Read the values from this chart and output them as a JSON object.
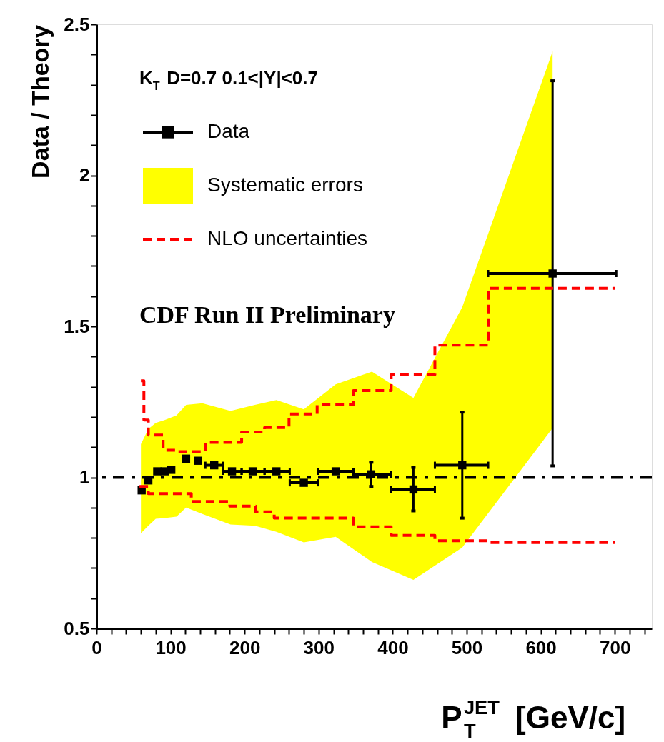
{
  "chart_data": {
    "type": "scatter",
    "ylabel": "Data / Theory",
    "xlabel": "P$^{JET}$$_{T}$ [GeV/c]",
    "annotations": [
      "K$_{T}$ D=0.7 0.1<|Y|<0.7",
      "CDF Run II Preliminary"
    ],
    "xlim": [
      0,
      750
    ],
    "ylim": [
      0.5,
      2.5
    ],
    "xticks": [
      0,
      {
        "value": 20,
        "label": null
      },
      {
        "value": 40,
        "label": null
      },
      {
        "value": 60,
        "label": null
      },
      {
        "value": 80,
        "label": null
      },
      100,
      {
        "value": 120,
        "label": null
      },
      {
        "value": 140,
        "label": null
      },
      {
        "value": 160,
        "label": null
      },
      {
        "value": 180,
        "label": null
      },
      200,
      {
        "value": 220,
        "label": null
      },
      {
        "value": 240,
        "label": null
      },
      {
        "value": 260,
        "label": null
      },
      {
        "value": 280,
        "label": null
      },
      300,
      {
        "value": 320,
        "label": null
      },
      {
        "value": 340,
        "label": null
      },
      {
        "value": 360,
        "label": null
      },
      {
        "value": 380,
        "label": null
      },
      400,
      {
        "value": 420,
        "label": null
      },
      {
        "value": 440,
        "label": null
      },
      {
        "value": 460,
        "label": null
      },
      {
        "value": 480,
        "label": null
      },
      500,
      {
        "value": 520,
        "label": null
      },
      {
        "value": 540,
        "label": null
      },
      {
        "value": 560,
        "label": null
      },
      {
        "value": 580,
        "label": null
      },
      600,
      {
        "value": 620,
        "label": null
      },
      {
        "value": 640,
        "label": null
      },
      {
        "value": 660,
        "label": null
      },
      {
        "value": 680,
        "label": null
      },
      700,
      {
        "value": 720,
        "label": null
      },
      {
        "value": 740,
        "label": null
      }
    ],
    "yticks": [
      0.5,
      {
        "value": 0.6,
        "label": null
      },
      {
        "value": 0.7,
        "label": null
      },
      {
        "value": 0.8,
        "label": null
      },
      {
        "value": 0.9,
        "label": null
      },
      1,
      {
        "value": 1.1,
        "label": null
      },
      {
        "value": 1.2,
        "label": null
      },
      {
        "value": 1.3,
        "label": null
      },
      {
        "value": 1.4,
        "label": null
      },
      1.5,
      {
        "value": 1.6,
        "label": null
      },
      {
        "value": 1.7,
        "label": null
      },
      {
        "value": 1.8,
        "label": null
      },
      {
        "value": 1.9,
        "label": null
      },
      2,
      {
        "value": 2.1,
        "label": null
      },
      {
        "value": 2.2,
        "label": null
      },
      {
        "value": 2.3,
        "label": null
      },
      {
        "value": 2.4,
        "label": null
      },
      2.5
    ],
    "grid": false,
    "legend": "top left",
    "ref_lines": [
      {
        "axis": "y",
        "value": 1,
        "color": "#000000",
        "line_style": "dashdot"
      }
    ],
    "series": [
      {
        "name": "Data",
        "color": "#000000",
        "marker": "square",
        "x": [
          61,
          70,
          82,
          92,
          101,
          121,
          137,
          159,
          183,
          211,
          243,
          280,
          323,
          371,
          428,
          494,
          616
        ],
        "values": [
          0.957,
          0.99,
          1.02,
          1.02,
          1.025,
          1.062,
          1.055,
          1.04,
          1.02,
          1.02,
          1.02,
          0.982,
          1.02,
          1.01,
          0.96,
          1.04,
          1.675
        ],
        "errors": [
          null,
          null,
          null,
          null,
          null,
          null,
          null,
          null,
          null,
          null,
          null,
          null,
          null,
          [
            0.97,
            1.05
          ],
          [
            0.889,
            1.033
          ],
          [
            0.865,
            1.216
          ],
          [
            1.038,
            2.313
          ]
        ],
        "xerrors": [
          null,
          null,
          null,
          null,
          null,
          null,
          null,
          [
            147,
            171
          ],
          [
            171,
            196
          ],
          [
            196,
            227
          ],
          [
            227,
            261
          ],
          [
            261,
            299
          ],
          [
            299,
            347
          ],
          [
            347,
            398
          ],
          [
            398,
            457
          ],
          [
            457,
            529
          ],
          [
            529,
            702
          ]
        ]
      },
      {
        "name": "Systematic errors",
        "type": "area",
        "color": "#ffff00",
        "x": [
          60,
          70,
          80,
          92,
          108,
          121,
          143,
          181,
          214,
          243,
          280,
          323,
          372,
          428,
          494,
          616
        ],
        "lower": [
          0.815,
          0.84,
          0.863,
          0.865,
          0.87,
          0.9,
          0.879,
          0.844,
          0.84,
          0.82,
          0.785,
          0.803,
          0.72,
          0.661,
          0.768,
          1.163
        ],
        "upper": [
          1.11,
          1.16,
          1.18,
          1.19,
          1.205,
          1.24,
          1.245,
          1.22,
          1.24,
          1.256,
          1.225,
          1.308,
          1.35,
          1.263,
          1.564,
          2.41
        ],
        "values": [
          null,
          null,
          null,
          null,
          null,
          null,
          null,
          null,
          null,
          null,
          null,
          null,
          null,
          null,
          null,
          null
        ]
      },
      {
        "name": "NLO uncertainties",
        "type": "step",
        "color": "#ff0000",
        "line_style": "dashed",
        "x": [
          60,
          64,
          70,
          90,
          110,
          147,
          196,
          227,
          260,
          298,
          347,
          398,
          457,
          529,
          700
        ],
        "values": [
          1.32,
          1.19,
          1.14,
          1.09,
          1.085,
          1.116,
          1.15,
          1.165,
          1.21,
          1.24,
          1.287,
          1.34,
          1.438,
          1.626,
          1.626
        ]
      },
      {
        "type": "step",
        "color": "#ff0000",
        "line_style": "dashed",
        "x": [
          58,
          70,
          128,
          180,
          215,
          240,
          347,
          398,
          457,
          529,
          700
        ],
        "values": [
          0.97,
          0.946,
          0.92,
          0.905,
          0.886,
          0.865,
          0.836,
          0.808,
          0.79,
          0.784,
          0.784
        ]
      }
    ]
  }
}
